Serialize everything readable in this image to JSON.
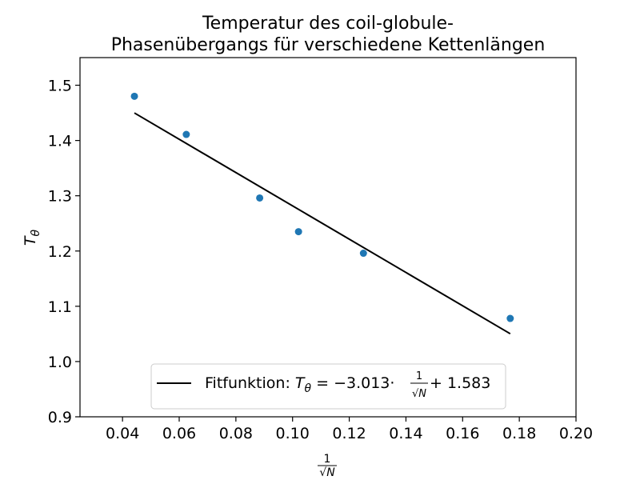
{
  "chart_data": {
    "type": "scatter",
    "title_lines": [
      "Temperatur des coil-globule-",
      "Phasenübergangs für verschiedene Kettenlängen"
    ],
    "xlabel": "1/√N",
    "ylabel": "Tθ",
    "xlim": [
      0.025,
      0.2
    ],
    "ylim": [
      0.9,
      1.55
    ],
    "xticks": [
      "0.04",
      "0.06",
      "0.08",
      "0.10",
      "0.12",
      "0.14",
      "0.16",
      "0.18",
      "0.20"
    ],
    "yticks": [
      "0.9",
      "1.0",
      "1.1",
      "1.2",
      "1.3",
      "1.4",
      "1.5"
    ],
    "grid": false,
    "legend_position": "bottom-center",
    "series": [
      {
        "kind": "points",
        "color": "#1f77b4",
        "points": [
          {
            "x": 0.0442,
            "y": 1.48
          },
          {
            "x": 0.0625,
            "y": 1.411
          },
          {
            "x": 0.0884,
            "y": 1.296
          },
          {
            "x": 0.1021,
            "y": 1.235
          },
          {
            "x": 0.125,
            "y": 1.196
          },
          {
            "x": 0.1768,
            "y": 1.078
          }
        ]
      },
      {
        "kind": "line",
        "color": "#000000",
        "slope": -3.013,
        "intercept": 1.583,
        "x_start": 0.0442,
        "x_end": 0.1768
      }
    ],
    "legend": {
      "prefix": "Fitfunktion: ",
      "formula_left": "T",
      "formula_sub": "θ",
      "formula_mid": " = −3.013·",
      "frac_num": "1",
      "frac_den": "√N",
      "formula_right": " + 1.583"
    }
  }
}
